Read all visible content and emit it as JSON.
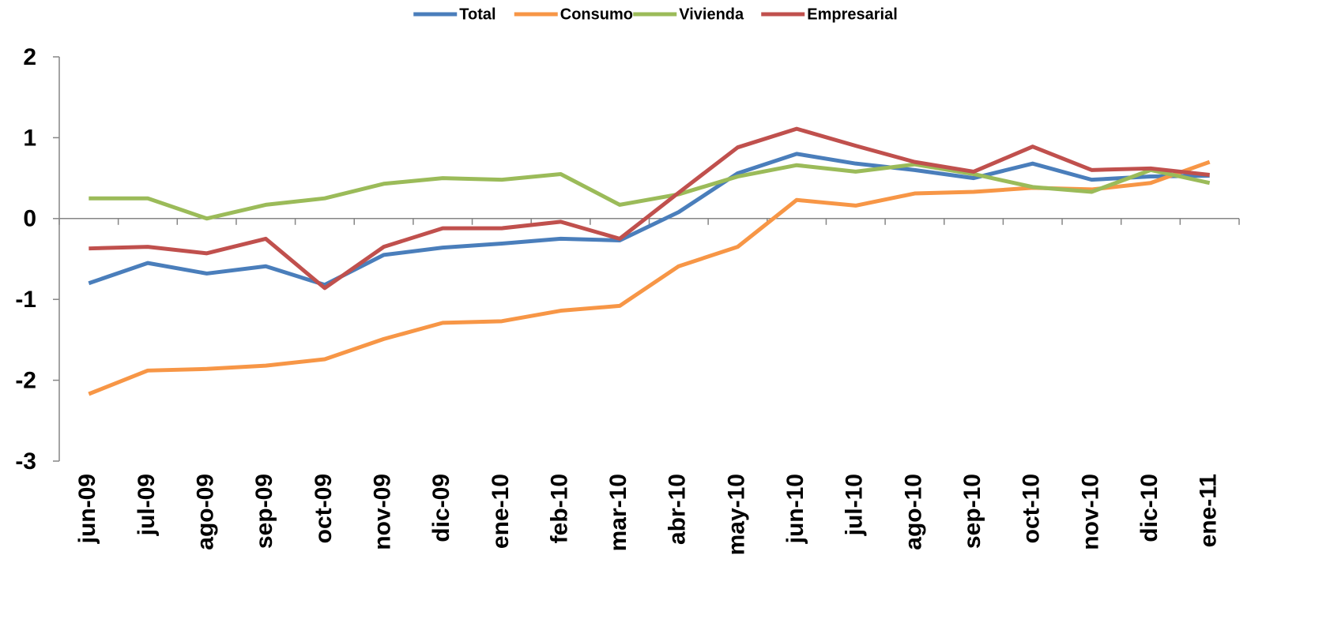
{
  "chart_data": {
    "type": "line",
    "categories": [
      "jun-09",
      "jul-09",
      "ago-09",
      "sep-09",
      "oct-09",
      "nov-09",
      "dic-09",
      "ene-10",
      "feb-10",
      "mar-10",
      "abr-10",
      "may-10",
      "jun-10",
      "jul-10",
      "ago-10",
      "sep-10",
      "oct-10",
      "nov-10",
      "dic-10",
      "ene-11"
    ],
    "series": [
      {
        "name": "Total",
        "color": "#4a7ebb",
        "values": [
          -0.8,
          -0.55,
          -0.68,
          -0.59,
          -0.82,
          -0.45,
          -0.36,
          -0.31,
          -0.25,
          -0.27,
          0.08,
          0.56,
          0.8,
          0.68,
          0.6,
          0.5,
          0.68,
          0.48,
          0.52,
          0.53
        ]
      },
      {
        "name": "Consumo",
        "color": "#f79646",
        "values": [
          -2.17,
          -1.88,
          -1.86,
          -1.82,
          -1.74,
          -1.49,
          -1.29,
          -1.27,
          -1.14,
          -1.08,
          -0.59,
          -0.35,
          0.23,
          0.16,
          0.31,
          0.33,
          0.38,
          0.36,
          0.44,
          0.7
        ]
      },
      {
        "name": "Vivienda",
        "color": "#9bbb59",
        "values": [
          0.25,
          0.25,
          0.0,
          0.17,
          0.25,
          0.43,
          0.5,
          0.48,
          0.55,
          0.17,
          0.3,
          0.52,
          0.66,
          0.58,
          0.67,
          0.55,
          0.39,
          0.33,
          0.6,
          0.44
        ]
      },
      {
        "name": "Empresarial",
        "color": "#c0504d",
        "values": [
          -0.37,
          -0.35,
          -0.43,
          -0.25,
          -0.86,
          -0.35,
          -0.12,
          -0.12,
          -0.04,
          -0.25,
          0.32,
          0.88,
          1.11,
          0.9,
          0.7,
          0.58,
          0.89,
          0.6,
          0.62,
          0.54
        ]
      }
    ],
    "ylim": [
      -3,
      2
    ],
    "yticks": [
      -3,
      -2,
      -1,
      0,
      1,
      2
    ],
    "legend": "top"
  }
}
